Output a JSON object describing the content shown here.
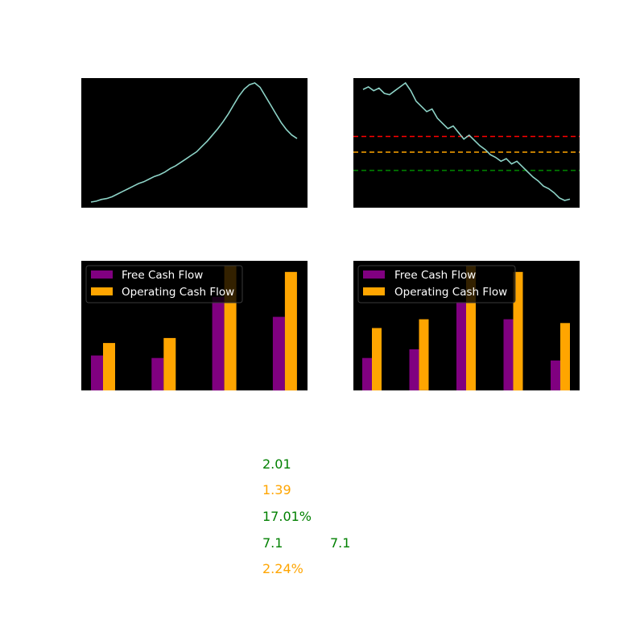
{
  "chart_data": [
    {
      "type": "line",
      "panel": "top-left",
      "grid": false,
      "series": [
        {
          "color": "#8dd3c7",
          "values": [
            0.0,
            0.1,
            0.3,
            0.4,
            0.6,
            0.9,
            1.2,
            1.5,
            1.8,
            2.1,
            2.3,
            2.6,
            2.9,
            3.1,
            3.4,
            3.8,
            4.1,
            4.5,
            4.9,
            5.3,
            5.7,
            6.3,
            6.9,
            7.6,
            8.3,
            9.1,
            10.0,
            11.0,
            12.0,
            12.8,
            13.3,
            13.5,
            13.0,
            12.0,
            11.0,
            10.0,
            9.0,
            8.2,
            7.6,
            7.2
          ]
        }
      ]
    },
    {
      "type": "line",
      "panel": "top-right",
      "grid": false,
      "series": [
        {
          "color": "#8dd3c7",
          "values": [
            9.1,
            9.3,
            9.0,
            9.2,
            8.8,
            8.7,
            9.0,
            9.3,
            9.6,
            9.0,
            8.2,
            7.8,
            7.4,
            7.6,
            6.9,
            6.5,
            6.1,
            6.3,
            5.8,
            5.3,
            5.6,
            5.2,
            4.8,
            4.5,
            4.1,
            3.9,
            3.6,
            3.8,
            3.4,
            3.6,
            3.2,
            2.8,
            2.4,
            2.1,
            1.7,
            1.5,
            1.2,
            0.8,
            0.6,
            0.7
          ]
        }
      ],
      "hlines": [
        {
          "y": 5.5,
          "color": "#ff0000",
          "style": "dashed"
        },
        {
          "y": 4.3,
          "color": "#ffa500",
          "style": "dashed"
        },
        {
          "y": 2.9,
          "color": "#008000",
          "style": "dashed"
        }
      ]
    },
    {
      "type": "bar",
      "panel": "bottom-left",
      "grid": false,
      "legend": "upper-left",
      "ylim": [
        0,
        100
      ],
      "series": [
        {
          "name": "Free Cash Flow",
          "color": "#800080",
          "values": [
            28,
            26,
            75,
            59
          ]
        },
        {
          "name": "Operating Cash Flow",
          "color": "#ffa500",
          "values": [
            38,
            42,
            100,
            95
          ]
        }
      ]
    },
    {
      "type": "bar",
      "panel": "bottom-right",
      "grid": false,
      "legend": "upper-left",
      "ylim": [
        0,
        100
      ],
      "series": [
        {
          "name": "Free Cash Flow",
          "color": "#800080",
          "values": [
            26,
            33,
            71,
            57,
            24
          ]
        },
        {
          "name": "Operating Cash Flow",
          "color": "#ffa500",
          "values": [
            50,
            57,
            100,
            95,
            54
          ]
        }
      ]
    }
  ],
  "metrics": [
    {
      "value": "2.01",
      "color": "#008000"
    },
    {
      "value": "1.39",
      "color": "#ffa500"
    },
    {
      "value": "17.01%",
      "color": "#008000"
    },
    {
      "value": "7.1",
      "color": "#008000",
      "extra": "7.1"
    },
    {
      "value": "2.24%",
      "color": "#ffa500"
    }
  ]
}
